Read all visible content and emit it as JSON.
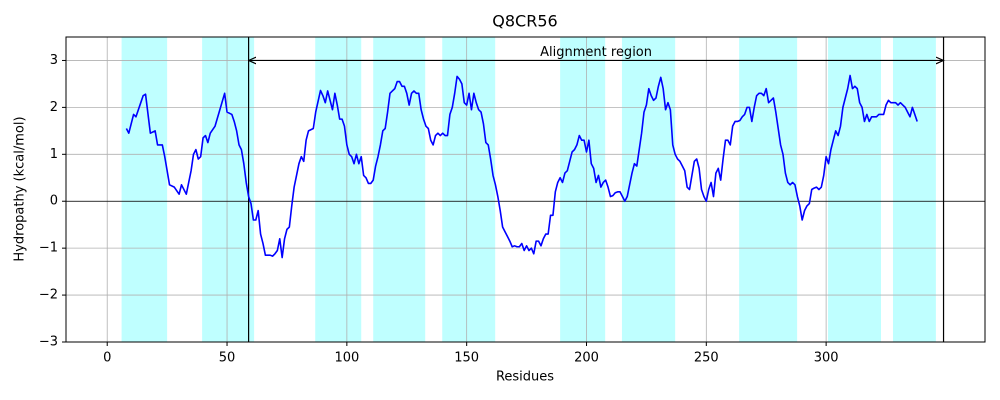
{
  "chart_data": {
    "type": "line",
    "title": "Q8CR56",
    "xlabel": "Residues",
    "ylabel": "Hydropathy (kcal/mol)",
    "xlim": [
      -17.2,
      366.3
    ],
    "ylim": [
      -3,
      3.5
    ],
    "xticks": [
      0,
      50,
      100,
      150,
      200,
      250,
      300
    ],
    "yticks": [
      {
        "value": -3,
        "label": "−3"
      },
      {
        "value": -2,
        "label": "−2"
      },
      {
        "value": -1,
        "label": "−1"
      },
      0,
      1,
      2,
      3
    ],
    "grid": true,
    "hline": 0,
    "vlines": [
      59,
      349
    ],
    "regions": [
      [
        6,
        25
      ],
      [
        39.6,
        61.3
      ],
      [
        86.8,
        106
      ],
      [
        111,
        132.7
      ],
      [
        139.8,
        161.9
      ],
      [
        189,
        207.8
      ],
      [
        214.8,
        237
      ],
      [
        263.7,
        287.9
      ],
      [
        300.8,
        322.9
      ],
      [
        327.9,
        345.8
      ]
    ],
    "region_color": "#bfffff",
    "annotation": {
      "text": "Alignment region",
      "x": [
        59,
        349
      ],
      "y": 3
    },
    "x": [
      8,
      9,
      11,
      12,
      14,
      15,
      16,
      18,
      20,
      21,
      23,
      24,
      26,
      28,
      30,
      31,
      33,
      35,
      36,
      37,
      38,
      39,
      40,
      41,
      42,
      43,
      45,
      47,
      49,
      50,
      52,
      53,
      54,
      55,
      56,
      57,
      58,
      59,
      60,
      61,
      62,
      63,
      64,
      65,
      66,
      68,
      69,
      70,
      71,
      72,
      73,
      74,
      75,
      76,
      77,
      78,
      79,
      80,
      81,
      82,
      83,
      84,
      86,
      87,
      89,
      90,
      91,
      92,
      93,
      94,
      95,
      96,
      97,
      98,
      99,
      100,
      101,
      102,
      103,
      104,
      105,
      106,
      107,
      108,
      109,
      110,
      111,
      112,
      113,
      114,
      115,
      116,
      117,
      118,
      119,
      120,
      121,
      122,
      123,
      124,
      125,
      126,
      127,
      128,
      129,
      130,
      131,
      132,
      133,
      134,
      135,
      136,
      137,
      138,
      139,
      140,
      141,
      142,
      143,
      144,
      145,
      146,
      147,
      148,
      149,
      150,
      151,
      152,
      153,
      154,
      155,
      156,
      157,
      158,
      159,
      160,
      161,
      162,
      163,
      164,
      165,
      166,
      167,
      168,
      169,
      170,
      171,
      172,
      173,
      174,
      175,
      176,
      177,
      178,
      179,
      180,
      181,
      182,
      183,
      184,
      185,
      186,
      187,
      188,
      189,
      190,
      191,
      192,
      193,
      194,
      195,
      196,
      197,
      198,
      199,
      200,
      201,
      202,
      203,
      204,
      205,
      206,
      207,
      208,
      209,
      210,
      211,
      212,
      213,
      214,
      215,
      216,
      217,
      218,
      219,
      220,
      221,
      222,
      223,
      224,
      225,
      226,
      227,
      228,
      229,
      230,
      231,
      232,
      233,
      234,
      235,
      236,
      237,
      238,
      239,
      240,
      241,
      242,
      243,
      244,
      245,
      246,
      247,
      248,
      249,
      250,
      251,
      252,
      253,
      254,
      255,
      256,
      257,
      258,
      259,
      260,
      261,
      262,
      263,
      264,
      265,
      266,
      267,
      268,
      269,
      270,
      271,
      272,
      273,
      274,
      275,
      276,
      277,
      278,
      279,
      280,
      281,
      282,
      283,
      284,
      285,
      286,
      287,
      288,
      289,
      290,
      291,
      292,
      293,
      294,
      295,
      296,
      297,
      298,
      299,
      300,
      301,
      302,
      303,
      304,
      305,
      306,
      307,
      308,
      309,
      310,
      311,
      312,
      313,
      314,
      315,
      316,
      317,
      318,
      319,
      320,
      321,
      322,
      323,
      324,
      325,
      326,
      327,
      328,
      329,
      330,
      331,
      332,
      333,
      334,
      335,
      336,
      337,
      338
    ],
    "series": [
      {
        "color": "#0000ff",
        "values": [
          1.55,
          1.45,
          1.85,
          1.8,
          2.1,
          2.25,
          2.28,
          1.45,
          1.5,
          1.2,
          1.2,
          0.95,
          0.35,
          0.3,
          0.15,
          0.35,
          0.15,
          0.65,
          1.0,
          1.1,
          0.9,
          0.95,
          1.35,
          1.4,
          1.25,
          1.45,
          1.6,
          1.95,
          2.3,
          1.9,
          1.85,
          1.7,
          1.5,
          1.2,
          1.1,
          0.8,
          0.4,
          0.1,
          -0.05,
          -0.4,
          -0.4,
          -0.2,
          -0.7,
          -0.9,
          -1.15,
          -1.15,
          -1.17,
          -1.12,
          -1.05,
          -0.8,
          -1.2,
          -0.8,
          -0.6,
          -0.55,
          -0.1,
          0.3,
          0.55,
          0.8,
          0.95,
          0.85,
          1.3,
          1.5,
          1.55,
          1.9,
          2.36,
          2.25,
          2.1,
          2.35,
          2.15,
          1.95,
          2.3,
          2.05,
          1.75,
          1.75,
          1.6,
          1.2,
          1.0,
          0.95,
          0.8,
          1.0,
          0.8,
          0.95,
          0.55,
          0.5,
          0.38,
          0.38,
          0.45,
          0.75,
          0.95,
          1.2,
          1.5,
          1.55,
          1.9,
          2.3,
          2.35,
          2.4,
          2.55,
          2.55,
          2.45,
          2.45,
          2.3,
          2.05,
          2.3,
          2.35,
          2.3,
          2.3,
          1.95,
          1.75,
          1.6,
          1.55,
          1.3,
          1.2,
          1.4,
          1.45,
          1.4,
          1.45,
          1.4,
          1.4,
          1.85,
          2.0,
          2.3,
          2.66,
          2.6,
          2.5,
          2.1,
          2.05,
          2.3,
          1.95,
          2.3,
          2.1,
          1.95,
          1.9,
          1.65,
          1.25,
          1.2,
          0.9,
          0.55,
          0.35,
          0.1,
          -0.2,
          -0.55,
          -0.65,
          -0.75,
          -0.85,
          -0.97,
          -0.95,
          -0.97,
          -0.97,
          -0.9,
          -1.05,
          -0.95,
          -1.05,
          -1.0,
          -1.12,
          -0.85,
          -0.85,
          -0.95,
          -0.8,
          -0.7,
          -0.7,
          -0.3,
          -0.3,
          0.2,
          0.4,
          0.5,
          0.4,
          0.6,
          0.65,
          0.85,
          1.05,
          1.1,
          1.2,
          1.4,
          1.3,
          1.3,
          1.05,
          1.3,
          0.8,
          0.7,
          0.4,
          0.55,
          0.3,
          0.4,
          0.45,
          0.3,
          0.1,
          0.12,
          0.18,
          0.2,
          0.2,
          0.1,
          0.0,
          0.1,
          0.35,
          0.6,
          0.8,
          0.75,
          1.1,
          1.45,
          1.9,
          2.05,
          2.4,
          2.25,
          2.15,
          2.2,
          2.45,
          2.64,
          2.4,
          1.95,
          2.1,
          1.95,
          1.2,
          1.0,
          0.9,
          0.85,
          0.75,
          0.65,
          0.3,
          0.25,
          0.55,
          0.85,
          0.9,
          0.7,
          0.25,
          0.1,
          0.0,
          0.25,
          0.4,
          0.1,
          0.6,
          0.7,
          0.45,
          0.9,
          1.3,
          1.3,
          1.2,
          1.6,
          1.7,
          1.7,
          1.72,
          1.8,
          1.85,
          2.0,
          2.0,
          1.7,
          2.0,
          2.25,
          2.3,
          2.3,
          2.25,
          2.4,
          2.1,
          2.15,
          2.2,
          1.9,
          1.55,
          1.2,
          1.0,
          0.6,
          0.4,
          0.35,
          0.4,
          0.35,
          0.1,
          -0.1,
          -0.4,
          -0.2,
          -0.1,
          -0.05,
          0.25,
          0.28,
          0.3,
          0.25,
          0.3,
          0.55,
          0.95,
          0.8,
          1.1,
          1.3,
          1.5,
          1.4,
          1.6,
          2.0,
          2.2,
          2.4,
          2.68,
          2.4,
          2.45,
          2.4,
          2.1,
          2.0,
          1.7,
          1.85,
          1.7,
          1.8,
          1.8,
          1.8,
          1.85,
          1.85,
          1.85,
          2.05,
          2.15,
          2.1,
          2.1,
          2.1,
          2.05,
          2.1,
          2.05,
          2.0,
          1.9,
          1.8,
          2.0,
          1.85,
          1.7
        ]
      }
    ]
  }
}
